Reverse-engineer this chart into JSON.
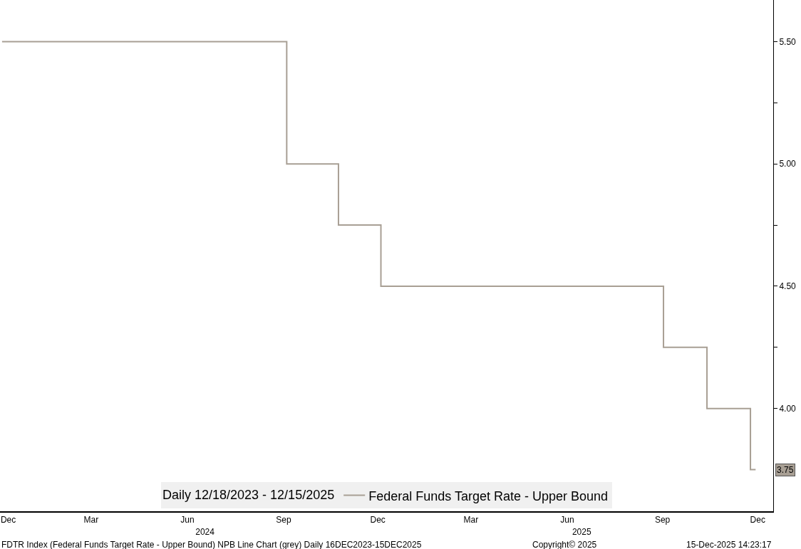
{
  "chart_data": {
    "type": "step",
    "x": [
      "2023-12-18",
      "2024-09-18",
      "2024-11-07",
      "2024-12-18",
      "2025-09-17",
      "2025-10-29",
      "2025-12-10",
      "2025-12-15"
    ],
    "series": [
      {
        "name": "Federal Funds Target Rate - Upper Bound",
        "color": "#a89f94",
        "values": [
          5.5,
          5.0,
          4.75,
          4.5,
          4.25,
          4.0,
          3.75,
          3.75
        ]
      }
    ],
    "legend_title": "Daily 12/18/2023 - 12/15/2025",
    "legend": "bottom",
    "grid": false,
    "line_style": "solid",
    "xlim": [
      "2023-12-16",
      "2026-01-01"
    ],
    "xticks": [
      {
        "value": "2023-12-24",
        "label": "Dec"
      },
      {
        "value": "2024-03-13",
        "label": "Mar"
      },
      {
        "value": "2024-06-14",
        "label": "Jun"
      },
      {
        "value": "2024-09-15",
        "label": "Sep"
      },
      {
        "value": "2024-12-15",
        "label": "Dec"
      },
      {
        "value": "2025-03-15",
        "label": "Mar"
      },
      {
        "value": "2025-06-16",
        "label": "Jun"
      },
      {
        "value": "2025-09-16",
        "label": "Sep"
      },
      {
        "value": "2025-12-17",
        "label": "Dec"
      }
    ],
    "x2lim": [
      "2023-12-16",
      "2026-01-01"
    ],
    "x2ticks": [
      {
        "value": "2024-07-01",
        "label": "2024"
      },
      {
        "value": "2025-06-30",
        "label": "2025"
      }
    ],
    "ylim": [
      3.58,
      5.67
    ],
    "yticks": [
      {
        "value": 4.0,
        "label": "4.00"
      },
      {
        "value": 4.25,
        "label": null
      },
      {
        "value": 4.5,
        "label": "4.50"
      },
      {
        "value": 4.75,
        "label": null
      },
      {
        "value": 5.0,
        "label": "5.00"
      },
      {
        "value": 5.25,
        "label": null
      },
      {
        "value": 5.5,
        "label": "5.50"
      }
    ],
    "annotations": [
      {
        "text": "3.75",
        "x": "2025-12-15",
        "y": 3.75
      },
      "FDTR Index (Federal Funds Target Rate - Upper Bound) NPB Line Chart (grey) Daily 16DEC2023-15DEC2025",
      "Copyright© 2025",
      "15-Dec-2025 14:23:17"
    ]
  }
}
